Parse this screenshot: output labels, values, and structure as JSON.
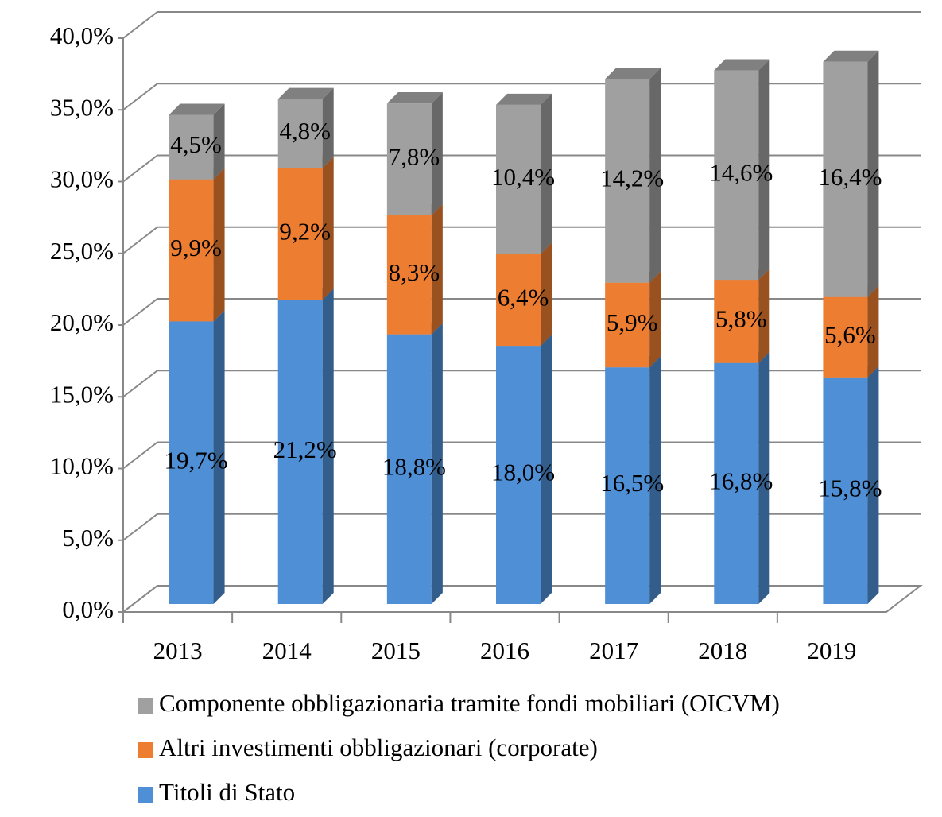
{
  "chart_data": {
    "type": "bar3d_stacked",
    "categories": [
      "2013",
      "2014",
      "2015",
      "2016",
      "2017",
      "2018",
      "2019"
    ],
    "series": [
      {
        "name": "Titoli di Stato",
        "color": "#4f8fd6",
        "values": [
          19.7,
          21.2,
          18.8,
          18.0,
          16.5,
          16.8,
          15.8
        ],
        "value_labels": [
          "19,7%",
          "21,2%",
          "18,8%",
          "18,0%",
          "16,5%",
          "16,8%",
          "15,8%"
        ]
      },
      {
        "name": "Altri investimenti obbligazionari (corporate)",
        "color": "#ed7d31",
        "values": [
          9.9,
          9.2,
          8.3,
          6.4,
          5.9,
          5.8,
          5.6
        ],
        "value_labels": [
          "9,9%",
          "9,2%",
          "8,3%",
          "6,4%",
          "5,9%",
          "5,8%",
          "5,6%"
        ]
      },
      {
        "name": "Componente obbligazionaria tramite fondi mobiliari (OICVM)",
        "color": "#a0a0a0",
        "values": [
          4.5,
          4.8,
          7.8,
          10.4,
          14.2,
          14.6,
          16.4
        ],
        "value_labels": [
          "4,5%",
          "4,8%",
          "7,8%",
          "10,4%",
          "14,2%",
          "14,6%",
          "16,4%"
        ]
      }
    ],
    "ylim": [
      0,
      40
    ],
    "yticks": [
      {
        "value": 0,
        "label": "0,0%"
      },
      {
        "value": 5,
        "label": "5,0%"
      },
      {
        "value": 10,
        "label": "10,0%"
      },
      {
        "value": 15,
        "label": "15,0%"
      },
      {
        "value": 20,
        "label": "20,0%"
      },
      {
        "value": 25,
        "label": "25,0%"
      },
      {
        "value": 30,
        "label": "30,0%"
      },
      {
        "value": 35,
        "label": "35,0%"
      },
      {
        "value": 40,
        "label": "40,0%"
      }
    ],
    "grid": true,
    "legend": "bottom"
  }
}
